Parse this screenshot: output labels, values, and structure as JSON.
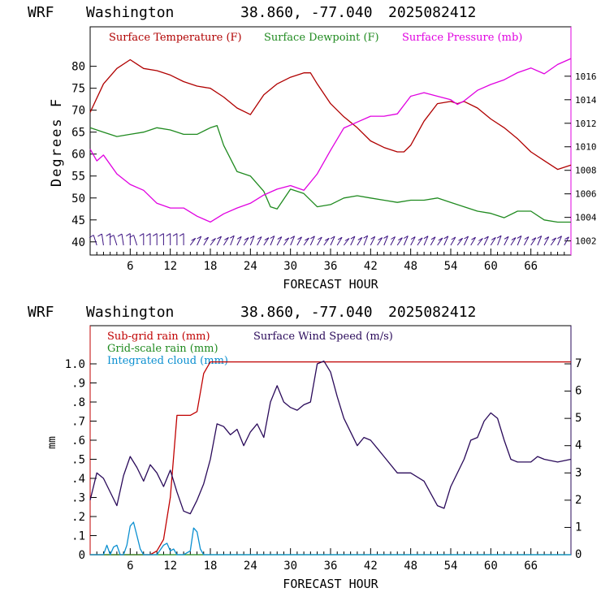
{
  "colors": {
    "temperature": "#b00000",
    "dewpoint": "#1f8a1f",
    "pressure": "#e000e0",
    "subgrid_rain": "#c00000",
    "grid_rain": "#1f8a1f",
    "cloud": "#0a8fd0",
    "wind_speed": "#2a0a5a",
    "barbs": "#3a1080"
  },
  "chart_data": [
    {
      "type": "line",
      "header": {
        "model": "WRF",
        "location": "Washington",
        "coords": "38.860, -77.040",
        "run": "2025082412"
      },
      "xlabel": "FORECAST HOUR",
      "ylabel": "Degrees F",
      "xlim": [
        0,
        72
      ],
      "ylim": [
        37,
        89
      ],
      "y2lim": [
        1000.8,
        1020.2
      ],
      "x_ticks": [
        "6",
        "12",
        "18",
        "24",
        "30",
        "36",
        "42",
        "48",
        "54",
        "60",
        "66"
      ],
      "x_tick_values": [
        6,
        12,
        18,
        24,
        30,
        36,
        42,
        48,
        54,
        60,
        66
      ],
      "y_ticks": [
        "40",
        "45",
        "50",
        "55",
        "60",
        "65",
        "70",
        "75",
        "80"
      ],
      "y_tick_values": [
        40,
        45,
        50,
        55,
        60,
        65,
        70,
        75,
        80
      ],
      "y2_ticks": [
        "1002",
        "1004",
        "1006",
        "1008",
        "1010",
        "1012",
        "1014",
        "1016"
      ],
      "y2_tick_values": [
        1002,
        1004,
        1006,
        1008,
        1010,
        1012,
        1014,
        1016
      ],
      "grid": false,
      "legend": [
        {
          "label": "Surface Temperature (F)",
          "color": "#b00000"
        },
        {
          "label": "Surface Dewpoint (F)",
          "color": "#1f8a1f"
        },
        {
          "label": "Surface Pressure (mb)",
          "color": "#e000e0"
        }
      ],
      "series": [
        {
          "name": "Surface Temperature (F)",
          "axis": "left",
          "x": [
            0,
            2,
            4,
            6,
            7,
            8,
            10,
            12,
            14,
            16,
            18,
            20,
            22,
            24,
            26,
            28,
            30,
            32,
            33,
            34,
            36,
            38,
            40,
            42,
            44,
            46,
            47,
            48,
            50,
            52,
            54,
            55,
            56,
            58,
            60,
            62,
            64,
            66,
            68,
            70,
            72
          ],
          "y": [
            69.5,
            76,
            79.5,
            81.5,
            80.5,
            79.5,
            79,
            78,
            76.5,
            75.5,
            75,
            73,
            70.5,
            69,
            73.5,
            76,
            77.5,
            78.5,
            78.5,
            76,
            71.5,
            68.5,
            66,
            63,
            61.5,
            60.5,
            60.5,
            62,
            67.5,
            71.5,
            72,
            71.5,
            72,
            70.5,
            68,
            66,
            63.5,
            60.5,
            58.5,
            56.5,
            57.5
          ]
        },
        {
          "name": "Surface Dewpoint (F)",
          "axis": "left",
          "x": [
            0,
            2,
            4,
            6,
            8,
            10,
            12,
            14,
            16,
            18,
            19,
            20,
            22,
            24,
            26,
            27,
            28,
            30,
            32,
            34,
            36,
            38,
            40,
            42,
            44,
            46,
            48,
            50,
            52,
            54,
            56,
            58,
            60,
            62,
            64,
            66,
            68,
            70,
            72
          ],
          "y": [
            66,
            65,
            64,
            64.5,
            65,
            66,
            65.5,
            64.5,
            64.5,
            66,
            66.5,
            62,
            56,
            55,
            51.5,
            48,
            47.5,
            52,
            51,
            48,
            48.5,
            50,
            50.5,
            50,
            49.5,
            49,
            49.5,
            49.5,
            50,
            49,
            48,
            47,
            46.5,
            45.5,
            47,
            47,
            45,
            44.5,
            44.5
          ]
        },
        {
          "name": "Surface Pressure (mb)",
          "axis": "right",
          "x": [
            0,
            1,
            2,
            4,
            6,
            8,
            10,
            12,
            14,
            16,
            18,
            20,
            22,
            24,
            26,
            28,
            30,
            32,
            34,
            36,
            38,
            40,
            42,
            44,
            46,
            48,
            50,
            52,
            54,
            55,
            56,
            58,
            60,
            62,
            64,
            66,
            68,
            70,
            72
          ],
          "y": [
            1009.8,
            1008.8,
            1009.3,
            1007.7,
            1006.8,
            1006.3,
            1005.2,
            1004.8,
            1004.8,
            1004.1,
            1003.6,
            1004.3,
            1004.8,
            1005.2,
            1005.9,
            1006.4,
            1006.7,
            1006.3,
            1007.7,
            1009.7,
            1011.6,
            1012.1,
            1012.6,
            1012.6,
            1012.8,
            1014.3,
            1014.6,
            1014.3,
            1014.0,
            1013.6,
            1013.9,
            1014.8,
            1015.3,
            1015.7,
            1016.3,
            1016.7,
            1016.2,
            1017.0,
            1017.5
          ]
        }
      ],
      "wind_barbs": {
        "x": [
          1,
          2,
          3,
          4,
          5,
          6,
          7,
          8,
          9,
          10,
          11,
          12,
          13,
          14,
          15,
          16,
          17,
          18,
          19,
          20,
          21,
          22,
          23,
          24,
          25,
          26,
          27,
          28,
          29,
          30,
          31,
          32,
          33,
          34,
          35,
          36,
          37,
          38,
          39,
          40,
          41,
          42,
          43,
          44,
          45,
          46,
          47,
          48,
          49,
          50,
          51,
          52,
          53,
          54,
          55,
          56,
          57,
          58,
          59,
          60,
          61,
          62,
          63,
          64,
          65,
          66,
          67,
          68,
          69,
          70,
          71
        ]
      }
    },
    {
      "type": "line",
      "header": {
        "model": "WRF",
        "location": "Washington",
        "coords": "38.860, -77.040",
        "run": "2025082412"
      },
      "xlabel": "FORECAST HOUR",
      "ylabel": "mm",
      "xlim": [
        0,
        72
      ],
      "ylim": [
        0,
        1.2
      ],
      "y2lim": [
        0,
        8.4
      ],
      "x_ticks": [
        "6",
        "12",
        "18",
        "24",
        "30",
        "36",
        "42",
        "48",
        "54",
        "60",
        "66"
      ],
      "x_tick_values": [
        6,
        12,
        18,
        24,
        30,
        36,
        42,
        48,
        54,
        60,
        66
      ],
      "y_ticks": [
        "0",
        ".1",
        ".2",
        ".3",
        ".4",
        ".5",
        ".6",
        ".7",
        ".8",
        ".9",
        "1.0"
      ],
      "y_tick_values": [
        0,
        0.1,
        0.2,
        0.3,
        0.4,
        0.5,
        0.6,
        0.7,
        0.8,
        0.9,
        1.0
      ],
      "y2_ticks": [
        "0",
        "1",
        "2",
        "3",
        "4",
        "5",
        "6",
        "7"
      ],
      "y2_tick_values": [
        0,
        1,
        2,
        3,
        4,
        5,
        6,
        7
      ],
      "grid": false,
      "legend": [
        {
          "label": "Sub-grid rain (mm)",
          "color": "#c00000"
        },
        {
          "label": "Grid-scale rain (mm)",
          "color": "#1f8a1f"
        },
        {
          "label": "Integrated cloud (mm)",
          "color": "#0a8fd0"
        },
        {
          "label": "Surface Wind Speed (m/s)",
          "color": "#2a0a5a"
        }
      ],
      "series": [
        {
          "name": "Sub-grid rain (mm)",
          "axis": "left",
          "step": true,
          "x": [
            0,
            9,
            10,
            11,
            12,
            13,
            14,
            15,
            16,
            17,
            18,
            72
          ],
          "y": [
            0,
            0,
            0.02,
            0.08,
            0.3,
            0.73,
            0.73,
            0.73,
            0.75,
            0.95,
            1.01,
            1.01
          ]
        },
        {
          "name": "Grid-scale rain (mm)",
          "axis": "left",
          "x": [
            0,
            72
          ],
          "y": [
            0,
            0
          ]
        },
        {
          "name": "Integrated cloud (mm)",
          "axis": "left",
          "x": [
            0,
            2,
            2.5,
            3,
            3.5,
            4,
            4.5,
            5,
            5.5,
            6,
            6.5,
            7,
            7.5,
            8,
            9,
            10,
            11,
            11.5,
            12,
            12.5,
            13,
            14,
            15,
            15.5,
            16,
            16.5,
            17,
            18,
            72
          ],
          "y": [
            0,
            0,
            0.05,
            0,
            0.04,
            0.05,
            0,
            0,
            0.05,
            0.15,
            0.17,
            0.1,
            0.03,
            0,
            0,
            0,
            0.05,
            0.06,
            0.02,
            0.03,
            0,
            0,
            0.02,
            0.14,
            0.12,
            0.03,
            0,
            0,
            0
          ]
        },
        {
          "name": "Surface Wind Speed (m/s)",
          "axis": "right",
          "x": [
            0,
            1,
            2,
            4,
            5,
            6,
            7,
            8,
            9,
            10,
            11,
            12,
            13,
            14,
            15,
            16,
            17,
            18,
            19,
            20,
            21,
            22,
            23,
            24,
            25,
            26,
            27,
            28,
            29,
            30,
            31,
            32,
            33,
            34,
            35,
            36,
            37,
            38,
            39,
            40,
            41,
            42,
            43,
            44,
            46,
            48,
            50,
            52,
            53,
            54,
            56,
            57,
            58,
            59,
            60,
            61,
            62,
            63,
            64,
            66,
            67,
            68,
            70,
            72
          ],
          "y": [
            2.0,
            3.0,
            2.8,
            1.8,
            2.9,
            3.6,
            3.2,
            2.7,
            3.3,
            3.0,
            2.5,
            3.1,
            2.3,
            1.6,
            1.5,
            2.0,
            2.6,
            3.5,
            4.8,
            4.7,
            4.4,
            4.6,
            4.0,
            4.5,
            4.8,
            4.3,
            5.6,
            6.2,
            5.6,
            5.4,
            5.3,
            5.5,
            5.6,
            7.0,
            7.1,
            6.7,
            5.8,
            5.0,
            4.5,
            4.0,
            4.3,
            4.2,
            3.9,
            3.6,
            3.0,
            3.0,
            2.7,
            1.8,
            1.7,
            2.5,
            3.5,
            4.2,
            4.3,
            4.9,
            5.2,
            5.0,
            4.2,
            3.5,
            3.4,
            3.4,
            3.6,
            3.5,
            3.4,
            3.5
          ]
        }
      ]
    }
  ]
}
